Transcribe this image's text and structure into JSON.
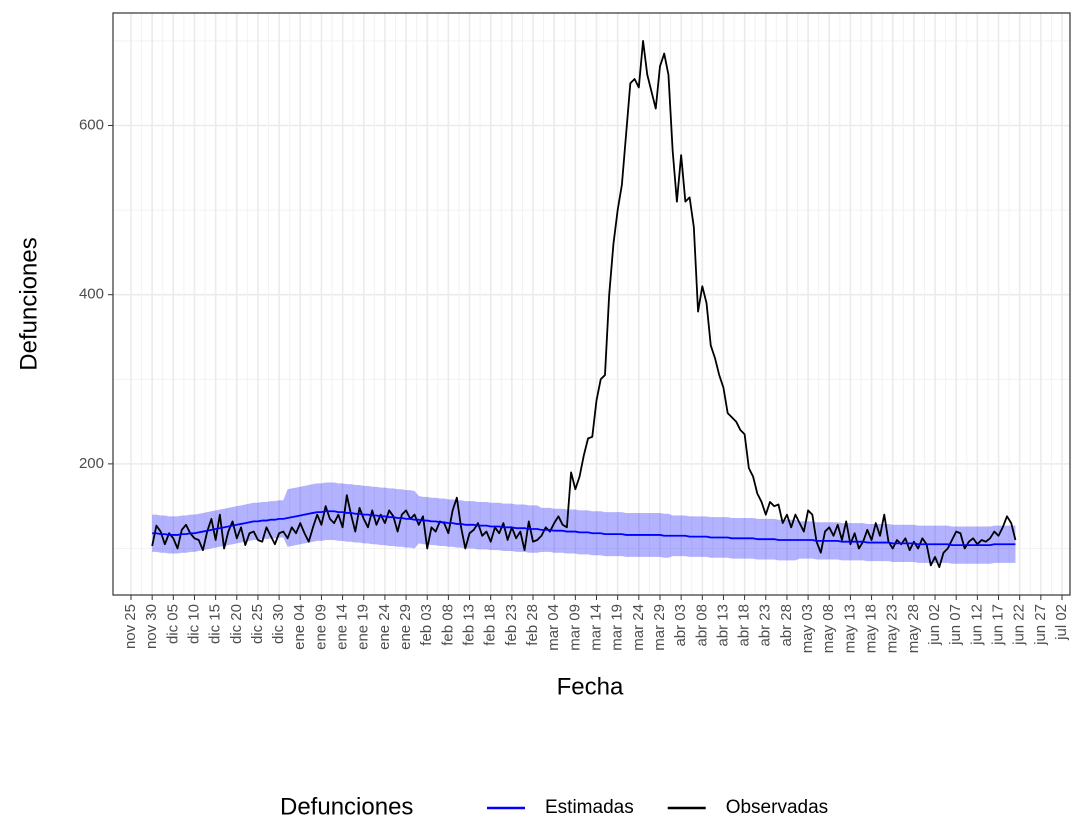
{
  "chart_data": {
    "type": "line",
    "x_label": "Fecha",
    "y_label": "Defunciones",
    "legend_title": "Defunciones",
    "legend": "bottom",
    "grid": true,
    "band_opacity": 0.3,
    "ylim": [
      45,
      733
    ],
    "yticks": [
      200,
      400,
      600
    ],
    "categories": [
      "nov 25",
      null,
      null,
      null,
      null,
      "nov 30",
      null,
      null,
      null,
      null,
      "dic 05",
      null,
      null,
      null,
      null,
      "dic 10",
      null,
      null,
      null,
      null,
      "dic 15",
      null,
      null,
      null,
      null,
      "dic 20",
      null,
      null,
      null,
      null,
      "dic 25",
      null,
      null,
      null,
      null,
      "dic 30",
      null,
      null,
      null,
      null,
      "ene 04",
      null,
      null,
      null,
      null,
      "ene 09",
      null,
      null,
      null,
      null,
      "ene 14",
      null,
      null,
      null,
      null,
      "ene 19",
      null,
      null,
      null,
      null,
      "ene 24",
      null,
      null,
      null,
      null,
      "ene 29",
      null,
      null,
      null,
      null,
      "feb 03",
      null,
      null,
      null,
      null,
      "feb 08",
      null,
      null,
      null,
      null,
      "feb 13",
      null,
      null,
      null,
      null,
      "feb 18",
      null,
      null,
      null,
      null,
      "feb 23",
      null,
      null,
      null,
      null,
      "feb 28",
      null,
      null,
      null,
      null,
      "mar 04",
      null,
      null,
      null,
      null,
      "mar 09",
      null,
      null,
      null,
      null,
      "mar 14",
      null,
      null,
      null,
      null,
      "mar 19",
      null,
      null,
      null,
      null,
      "mar 24",
      null,
      null,
      null,
      null,
      "mar 29",
      null,
      null,
      null,
      null,
      "abr 03",
      null,
      null,
      null,
      null,
      "abr 08",
      null,
      null,
      null,
      null,
      "abr 13",
      null,
      null,
      null,
      null,
      "abr 18",
      null,
      null,
      null,
      null,
      "abr 23",
      null,
      null,
      null,
      null,
      "abr 28",
      null,
      null,
      null,
      null,
      "may 03",
      null,
      null,
      null,
      null,
      "may 08",
      null,
      null,
      null,
      null,
      "may 13",
      null,
      null,
      null,
      null,
      "may 18",
      null,
      null,
      null,
      null,
      "may 23",
      null,
      null,
      null,
      null,
      "may 28",
      null,
      null,
      null,
      null,
      "jun 02",
      null,
      null,
      null,
      null,
      "jun 07",
      null,
      null,
      null,
      null,
      "jun 12",
      null,
      null,
      null,
      null,
      "jun 17",
      null,
      null,
      null,
      null,
      "jun 22",
      null,
      null,
      null,
      null,
      "jun 27",
      null,
      null,
      null,
      null,
      "jul 02"
    ],
    "series": [
      {
        "name": "Estimadas",
        "color": "#0000ff",
        "values": [
          null,
          null,
          null,
          null,
          null,
          118,
          118,
          117,
          117,
          116,
          116,
          116,
          117,
          117,
          118,
          118,
          119,
          120,
          121,
          122,
          123,
          124,
          125,
          126,
          127,
          128,
          129,
          130,
          131,
          132,
          132,
          133,
          133,
          134,
          134,
          135,
          135,
          136,
          137,
          138,
          139,
          140,
          141,
          142,
          143,
          143,
          144,
          144,
          144,
          143,
          143,
          142,
          142,
          141,
          141,
          140,
          140,
          139,
          139,
          138,
          138,
          137,
          137,
          136,
          136,
          135,
          135,
          134,
          134,
          133,
          133,
          132,
          132,
          131,
          131,
          130,
          130,
          129,
          129,
          128,
          128,
          128,
          127,
          127,
          127,
          126,
          126,
          126,
          125,
          125,
          125,
          124,
          124,
          124,
          123,
          123,
          123,
          122,
          122,
          122,
          121,
          121,
          121,
          120,
          120,
          120,
          119,
          119,
          119,
          118,
          118,
          118,
          117,
          117,
          117,
          117,
          117,
          116,
          116,
          116,
          116,
          116,
          116,
          116,
          116,
          116,
          115,
          115,
          115,
          115,
          115,
          115,
          114,
          114,
          114,
          114,
          114,
          113,
          113,
          113,
          113,
          113,
          112,
          112,
          112,
          112,
          112,
          112,
          111,
          111,
          111,
          111,
          111,
          110,
          110,
          110,
          110,
          110,
          110,
          110,
          110,
          110,
          109,
          109,
          109,
          109,
          109,
          109,
          108,
          108,
          108,
          108,
          108,
          108,
          107,
          107,
          107,
          107,
          107,
          107,
          106,
          106,
          106,
          106,
          106,
          106,
          105,
          105,
          105,
          105,
          105,
          105,
          105,
          105,
          104,
          104,
          104,
          104,
          104,
          104,
          104,
          104,
          104,
          104,
          105,
          105,
          105,
          105,
          105,
          105,
          null,
          null,
          null,
          null,
          null,
          null,
          null,
          null,
          null,
          null,
          null
        ],
        "lower": [
          null,
          null,
          null,
          null,
          null,
          96,
          96,
          95,
          95,
          94,
          94,
          94,
          95,
          95,
          96,
          96,
          97,
          98,
          99,
          100,
          101,
          102,
          103,
          104,
          105,
          106,
          107,
          108,
          109,
          110,
          110,
          111,
          111,
          112,
          112,
          113,
          113,
          102,
          103,
          104,
          105,
          106,
          107,
          108,
          109,
          109,
          110,
          110,
          110,
          109,
          109,
          108,
          108,
          107,
          107,
          106,
          106,
          105,
          105,
          104,
          104,
          103,
          103,
          102,
          102,
          101,
          101,
          100,
          106,
          105,
          105,
          104,
          104,
          103,
          103,
          102,
          102,
          101,
          101,
          100,
          100,
          100,
          99,
          99,
          99,
          98,
          98,
          98,
          97,
          97,
          97,
          96,
          96,
          96,
          95,
          95,
          95,
          96,
          96,
          96,
          95,
          95,
          95,
          94,
          94,
          94,
          93,
          93,
          93,
          92,
          92,
          92,
          91,
          91,
          91,
          91,
          91,
          90,
          90,
          90,
          90,
          90,
          90,
          90,
          90,
          90,
          89,
          89,
          91,
          91,
          91,
          91,
          90,
          90,
          90,
          90,
          90,
          89,
          89,
          89,
          89,
          89,
          88,
          88,
          88,
          88,
          88,
          88,
          87,
          87,
          87,
          87,
          87,
          86,
          86,
          86,
          86,
          86,
          88,
          88,
          88,
          88,
          87,
          87,
          87,
          87,
          87,
          87,
          86,
          86,
          86,
          86,
          86,
          86,
          85,
          85,
          85,
          85,
          85,
          85,
          84,
          84,
          84,
          84,
          84,
          84,
          83,
          83,
          83,
          83,
          83,
          83,
          83,
          83,
          82,
          82,
          82,
          82,
          82,
          82,
          82,
          82,
          82,
          82,
          83,
          83,
          83,
          83,
          83,
          83,
          null,
          null,
          null,
          null,
          null,
          null,
          null,
          null,
          null,
          null,
          null
        ],
        "upper": [
          null,
          null,
          null,
          null,
          null,
          140,
          140,
          139,
          139,
          138,
          138,
          138,
          139,
          139,
          140,
          140,
          141,
          142,
          143,
          144,
          145,
          146,
          147,
          148,
          149,
          150,
          151,
          152,
          153,
          154,
          154,
          155,
          155,
          156,
          156,
          157,
          157,
          170,
          171,
          172,
          173,
          174,
          175,
          176,
          177,
          177,
          178,
          178,
          178,
          177,
          177,
          176,
          176,
          175,
          175,
          174,
          174,
          173,
          173,
          172,
          172,
          171,
          171,
          170,
          170,
          169,
          169,
          168,
          162,
          161,
          161,
          160,
          160,
          159,
          159,
          158,
          158,
          157,
          157,
          156,
          156,
          156,
          155,
          155,
          155,
          154,
          154,
          154,
          153,
          153,
          153,
          152,
          152,
          152,
          151,
          151,
          151,
          148,
          148,
          148,
          147,
          147,
          147,
          146,
          146,
          146,
          145,
          145,
          145,
          144,
          144,
          144,
          143,
          143,
          143,
          143,
          143,
          142,
          142,
          142,
          142,
          142,
          142,
          142,
          142,
          142,
          141,
          141,
          139,
          139,
          139,
          139,
          138,
          138,
          138,
          138,
          138,
          137,
          137,
          137,
          137,
          137,
          136,
          136,
          136,
          136,
          136,
          136,
          135,
          135,
          135,
          135,
          135,
          134,
          134,
          134,
          134,
          134,
          132,
          132,
          132,
          132,
          131,
          131,
          131,
          131,
          131,
          131,
          130,
          130,
          130,
          130,
          130,
          130,
          129,
          129,
          129,
          129,
          129,
          129,
          128,
          128,
          128,
          128,
          128,
          128,
          127,
          127,
          127,
          127,
          127,
          127,
          127,
          127,
          126,
          126,
          126,
          126,
          126,
          126,
          126,
          126,
          126,
          126,
          127,
          127,
          127,
          127,
          127,
          127,
          null,
          null,
          null,
          null,
          null,
          null,
          null,
          null,
          null,
          null,
          null
        ]
      },
      {
        "name": "Observadas",
        "color": "#000000",
        "values": [
          null,
          null,
          null,
          null,
          null,
          103,
          127,
          120,
          105,
          118,
          112,
          100,
          122,
          128,
          118,
          112,
          110,
          98,
          120,
          135,
          110,
          140,
          100,
          120,
          132,
          112,
          125,
          104,
          118,
          120,
          110,
          108,
          125,
          115,
          105,
          118,
          120,
          112,
          125,
          118,
          130,
          118,
          108,
          125,
          140,
          128,
          150,
          135,
          130,
          140,
          125,
          163,
          140,
          120,
          148,
          135,
          125,
          145,
          128,
          140,
          130,
          145,
          138,
          120,
          140,
          145,
          135,
          140,
          128,
          138,
          100,
          125,
          120,
          132,
          130,
          118,
          145,
          160,
          125,
          100,
          118,
          122,
          130,
          115,
          120,
          108,
          125,
          118,
          130,
          110,
          125,
          112,
          120,
          98,
          132,
          108,
          110,
          115,
          125,
          120,
          130,
          138,
          128,
          125,
          190,
          170,
          185,
          210,
          230,
          232,
          275,
          300,
          305,
          400,
          460,
          500,
          530,
          590,
          650,
          655,
          645,
          700,
          660,
          640,
          620,
          670,
          685,
          660,
          570,
          510,
          565,
          510,
          515,
          480,
          380,
          410,
          390,
          340,
          325,
          305,
          290,
          260,
          255,
          250,
          240,
          235,
          195,
          185,
          165,
          155,
          140,
          155,
          150,
          152,
          130,
          140,
          125,
          140,
          130,
          120,
          145,
          140,
          108,
          95,
          120,
          125,
          115,
          128,
          110,
          132,
          105,
          118,
          100,
          108,
          122,
          110,
          130,
          115,
          140,
          108,
          100,
          110,
          105,
          112,
          98,
          108,
          100,
          112,
          105,
          80,
          90,
          78,
          95,
          100,
          110,
          120,
          118,
          100,
          108,
          112,
          105,
          110,
          108,
          112,
          120,
          115,
          125,
          138,
          130,
          110,
          null,
          null,
          null,
          null,
          null,
          null,
          null,
          null,
          null,
          null,
          null
        ]
      }
    ]
  }
}
